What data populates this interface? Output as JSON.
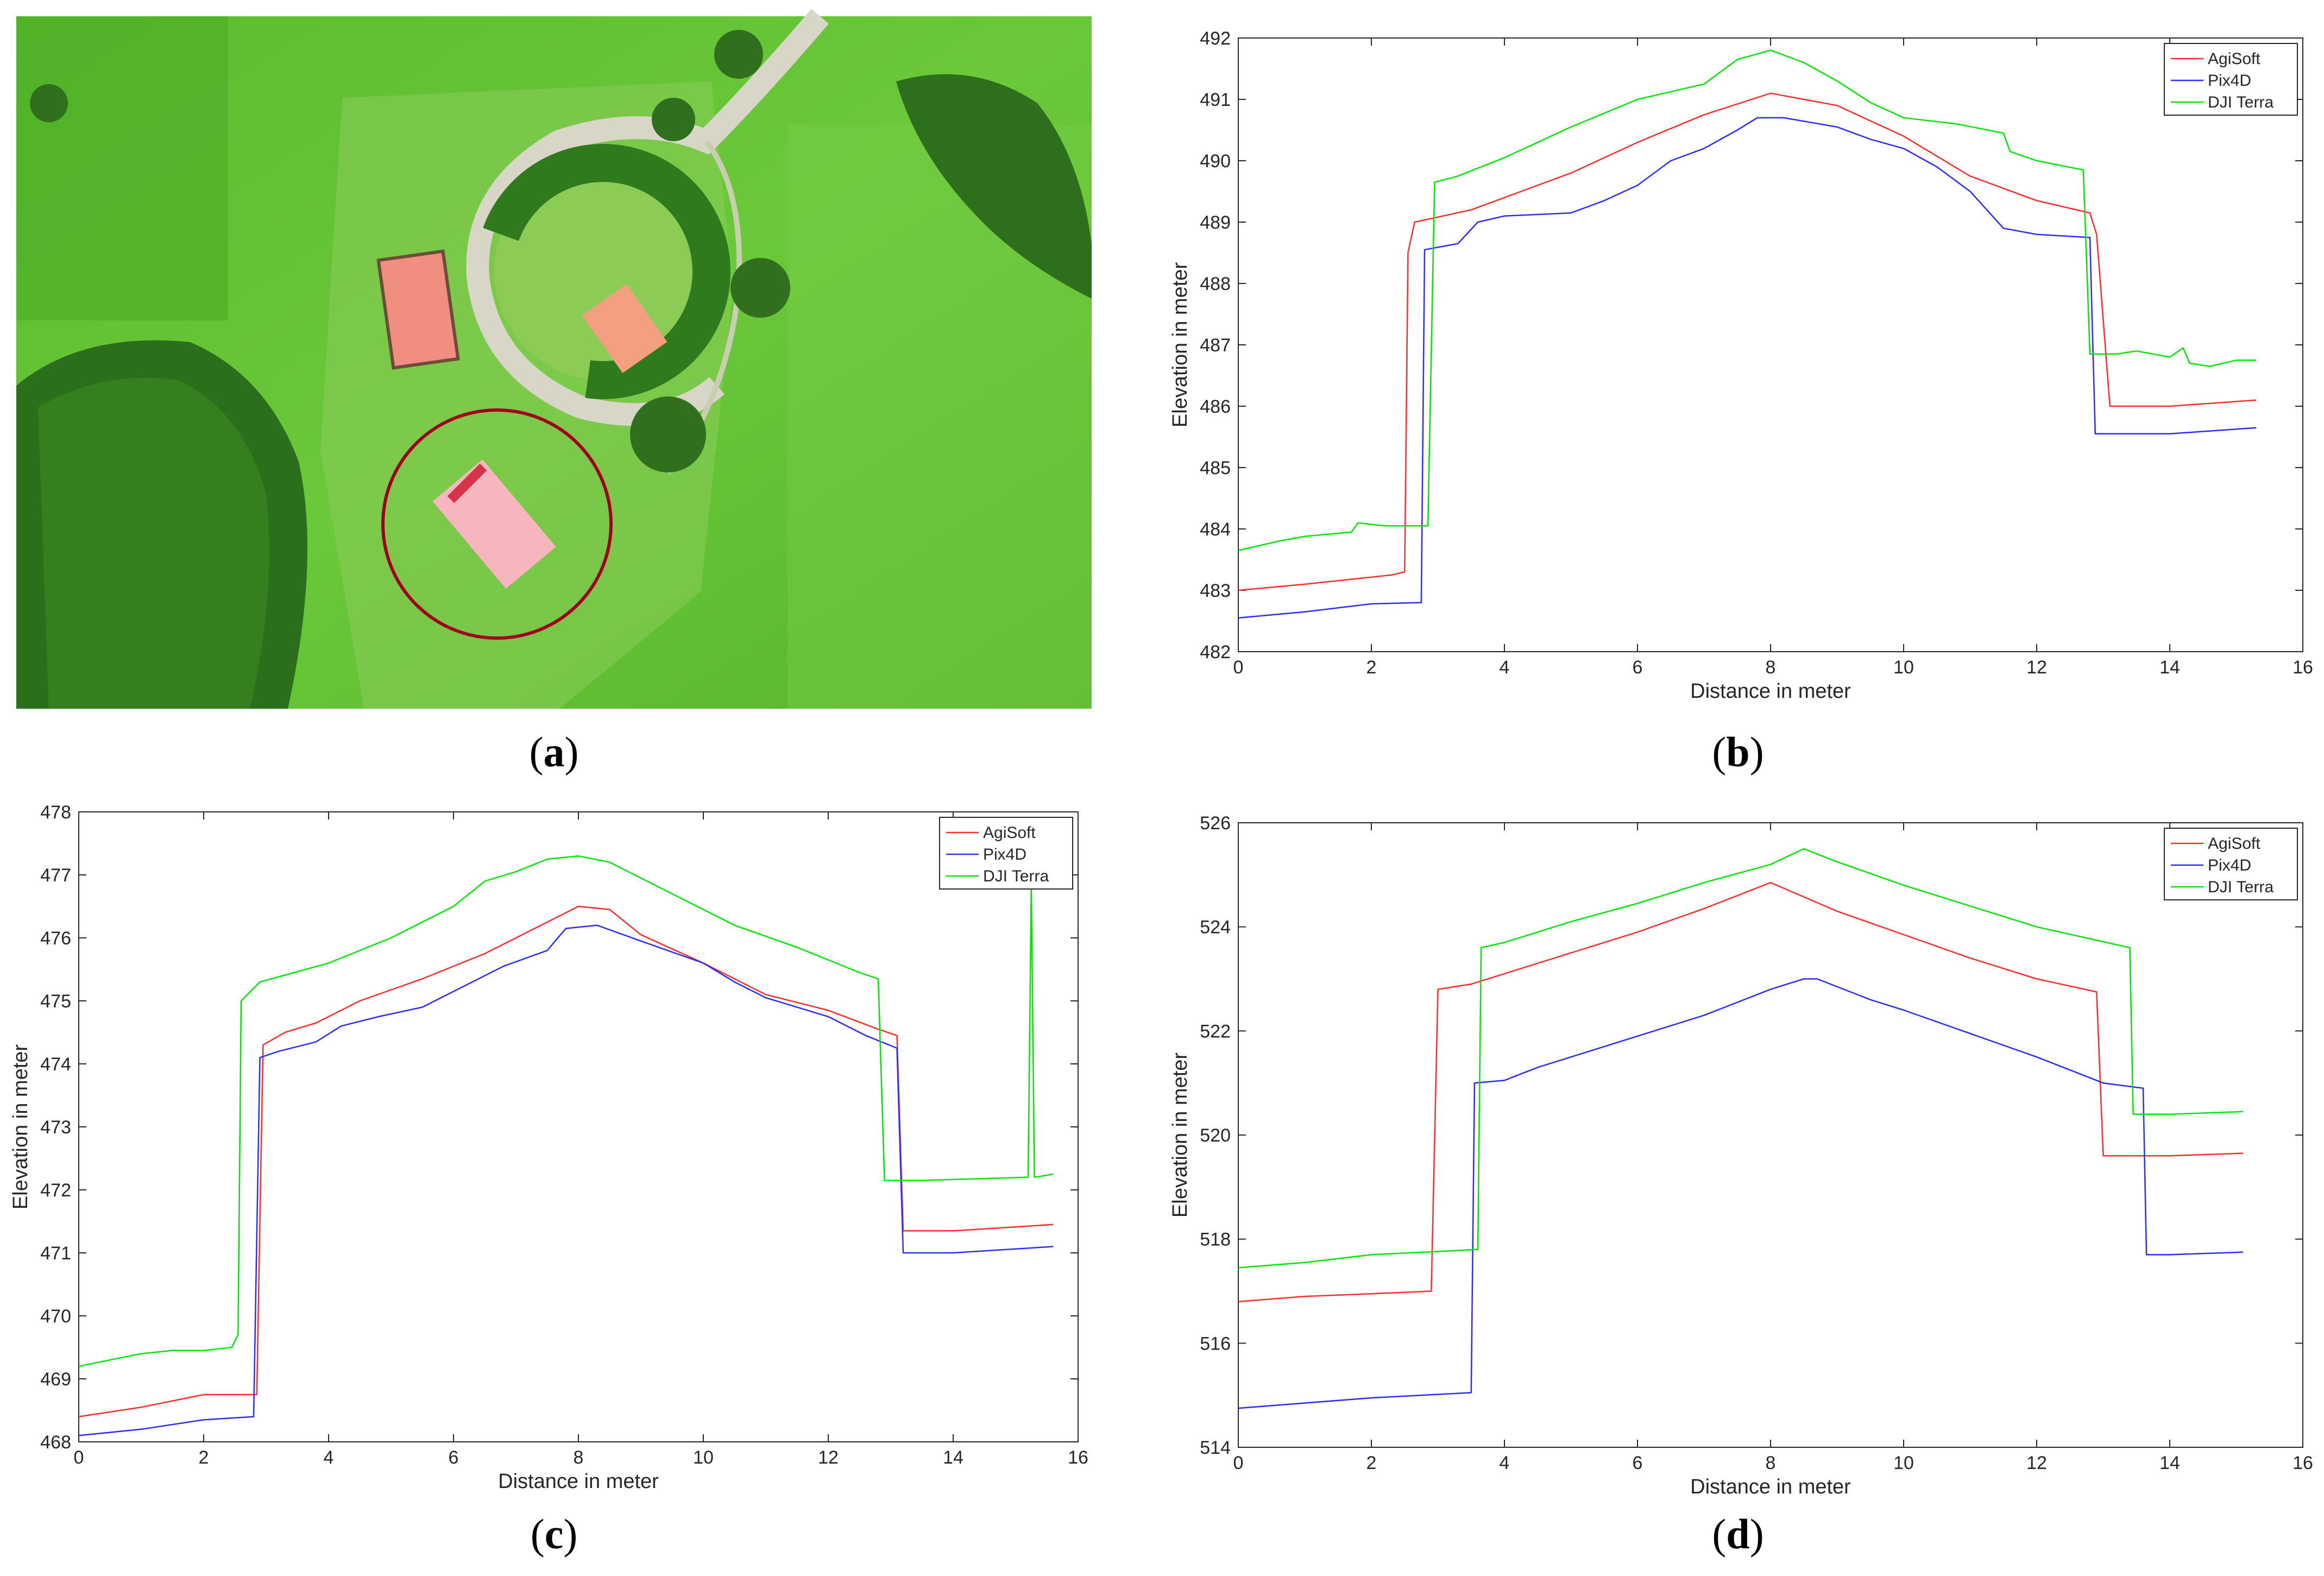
{
  "captions": {
    "a": "a",
    "b": "b",
    "c": "c",
    "d": "d"
  },
  "colors": {
    "agisoft": "#ff2a2a",
    "pix4d": "#2a2aff",
    "djiterra": "#00e600"
  },
  "chart_data": [
    {
      "id": "b",
      "type": "line",
      "title": "",
      "xlabel": "Distance in meter",
      "ylabel": "Elevation in meter",
      "xlim": [
        0,
        16
      ],
      "ylim": [
        482,
        492
      ],
      "xticks": [
        0,
        2,
        4,
        6,
        8,
        10,
        12,
        14,
        16
      ],
      "yticks": [
        482,
        483,
        484,
        485,
        486,
        487,
        488,
        489,
        490,
        491,
        492
      ],
      "legend_position": "top-right",
      "series": [
        {
          "name": "AgiSoft",
          "color": "#ff2a2a",
          "points": [
            [
              0,
              483.0
            ],
            [
              1,
              483.1
            ],
            [
              2.3,
              483.25
            ],
            [
              2.5,
              483.3
            ],
            [
              2.55,
              488.5
            ],
            [
              2.65,
              489.0
            ],
            [
              3.5,
              489.2
            ],
            [
              4,
              489.4
            ],
            [
              5,
              489.8
            ],
            [
              6,
              490.3
            ],
            [
              7,
              490.75
            ],
            [
              8,
              491.1
            ],
            [
              9,
              490.9
            ],
            [
              10,
              490.4
            ],
            [
              11,
              489.75
            ],
            [
              12,
              489.35
            ],
            [
              12.8,
              489.15
            ],
            [
              12.9,
              488.8
            ],
            [
              13.1,
              486.0
            ],
            [
              14,
              486.0
            ],
            [
              15.3,
              486.1
            ]
          ]
        },
        {
          "name": "Pix4D",
          "color": "#2a2aff",
          "points": [
            [
              0,
              482.55
            ],
            [
              1,
              482.65
            ],
            [
              2,
              482.78
            ],
            [
              2.75,
              482.8
            ],
            [
              2.8,
              488.55
            ],
            [
              3.3,
              488.65
            ],
            [
              3.6,
              489.0
            ],
            [
              4,
              489.1
            ],
            [
              5,
              489.15
            ],
            [
              5.5,
              489.35
            ],
            [
              6,
              489.6
            ],
            [
              6.5,
              490.0
            ],
            [
              7,
              490.2
            ],
            [
              7.5,
              490.5
            ],
            [
              7.8,
              490.7
            ],
            [
              8.2,
              490.7
            ],
            [
              9,
              490.55
            ],
            [
              9.5,
              490.35
            ],
            [
              10,
              490.2
            ],
            [
              10.5,
              489.9
            ],
            [
              11,
              489.5
            ],
            [
              11.5,
              488.9
            ],
            [
              12,
              488.8
            ],
            [
              12.8,
              488.75
            ],
            [
              12.88,
              485.55
            ],
            [
              14,
              485.55
            ],
            [
              15.3,
              485.65
            ]
          ]
        },
        {
          "name": "DJI Terra",
          "color": "#00e600",
          "points": [
            [
              0,
              483.65
            ],
            [
              0.6,
              483.8
            ],
            [
              1,
              483.88
            ],
            [
              1.7,
              483.95
            ],
            [
              1.8,
              484.1
            ],
            [
              2.2,
              484.05
            ],
            [
              2.85,
              484.05
            ],
            [
              2.95,
              489.65
            ],
            [
              3.3,
              489.75
            ],
            [
              4,
              490.05
            ],
            [
              5,
              490.55
            ],
            [
              6,
              491.0
            ],
            [
              7,
              491.25
            ],
            [
              7.5,
              491.65
            ],
            [
              8,
              491.8
            ],
            [
              8.5,
              491.6
            ],
            [
              9,
              491.3
            ],
            [
              9.5,
              490.95
            ],
            [
              10,
              490.7
            ],
            [
              10.8,
              490.6
            ],
            [
              11.5,
              490.45
            ],
            [
              11.6,
              490.15
            ],
            [
              12,
              490.0
            ],
            [
              12.7,
              489.85
            ],
            [
              12.8,
              486.85
            ],
            [
              13.2,
              486.85
            ],
            [
              13.5,
              486.9
            ],
            [
              14,
              486.8
            ],
            [
              14.2,
              486.95
            ],
            [
              14.3,
              486.7
            ],
            [
              14.6,
              486.65
            ],
            [
              15,
              486.75
            ],
            [
              15.3,
              486.75
            ]
          ]
        }
      ]
    },
    {
      "id": "c",
      "type": "line",
      "title": "",
      "xlabel": "Distance in meter",
      "ylabel": "Elevation in meter",
      "xlim": [
        0,
        16
      ],
      "ylim": [
        468,
        478
      ],
      "xticks": [
        0,
        2,
        4,
        6,
        8,
        10,
        12,
        14,
        16
      ],
      "yticks": [
        468,
        469,
        470,
        471,
        472,
        473,
        474,
        475,
        476,
        477,
        478
      ],
      "legend_position": "top-right",
      "series": [
        {
          "name": "AgiSoft",
          "color": "#ff2a2a",
          "points": [
            [
              0,
              468.4
            ],
            [
              1,
              468.55
            ],
            [
              2,
              468.75
            ],
            [
              2.85,
              468.75
            ],
            [
              2.95,
              474.3
            ],
            [
              3.3,
              474.5
            ],
            [
              3.8,
              474.65
            ],
            [
              4.5,
              475.0
            ],
            [
              5.5,
              475.35
            ],
            [
              6.5,
              475.75
            ],
            [
              7.5,
              476.25
            ],
            [
              8,
              476.5
            ],
            [
              8.5,
              476.45
            ],
            [
              9,
              476.05
            ],
            [
              10,
              475.6
            ],
            [
              11,
              475.1
            ],
            [
              12,
              474.85
            ],
            [
              12.8,
              474.55
            ],
            [
              13.1,
              474.45
            ],
            [
              13.2,
              471.35
            ],
            [
              14,
              471.35
            ],
            [
              15.6,
              471.45
            ]
          ]
        },
        {
          "name": "Pix4D",
          "color": "#2a2aff",
          "points": [
            [
              0,
              468.1
            ],
            [
              1,
              468.2
            ],
            [
              2,
              468.35
            ],
            [
              2.8,
              468.4
            ],
            [
              2.9,
              474.1
            ],
            [
              3.2,
              474.2
            ],
            [
              3.8,
              474.35
            ],
            [
              4.2,
              474.6
            ],
            [
              4.8,
              474.75
            ],
            [
              5.5,
              474.9
            ],
            [
              6,
              475.15
            ],
            [
              6.8,
              475.55
            ],
            [
              7.5,
              475.8
            ],
            [
              7.8,
              476.15
            ],
            [
              8.3,
              476.2
            ],
            [
              9,
              475.95
            ],
            [
              10,
              475.6
            ],
            [
              10.5,
              475.3
            ],
            [
              11,
              475.05
            ],
            [
              12,
              474.75
            ],
            [
              12.6,
              474.45
            ],
            [
              13.1,
              474.25
            ],
            [
              13.2,
              471.0
            ],
            [
              14,
              471.0
            ],
            [
              15.6,
              471.1
            ]
          ]
        },
        {
          "name": "DJI Terra",
          "color": "#00e600",
          "points": [
            [
              0,
              469.2
            ],
            [
              0.5,
              469.3
            ],
            [
              1,
              469.4
            ],
            [
              1.5,
              469.45
            ],
            [
              2,
              469.45
            ],
            [
              2.45,
              469.5
            ],
            [
              2.55,
              469.7
            ],
            [
              2.6,
              475.0
            ],
            [
              2.9,
              475.3
            ],
            [
              4,
              475.6
            ],
            [
              5,
              476.0
            ],
            [
              6,
              476.5
            ],
            [
              6.5,
              476.9
            ],
            [
              7,
              477.05
            ],
            [
              7.5,
              477.25
            ],
            [
              8,
              477.3
            ],
            [
              8.5,
              477.2
            ],
            [
              9.5,
              476.7
            ],
            [
              10.5,
              476.2
            ],
            [
              11.5,
              475.85
            ],
            [
              12.5,
              475.45
            ],
            [
              12.8,
              475.35
            ],
            [
              12.9,
              472.15
            ],
            [
              13.5,
              472.15
            ],
            [
              15.2,
              472.2
            ],
            [
              15.25,
              476.85
            ],
            [
              15.3,
              472.2
            ],
            [
              15.6,
              472.25
            ]
          ]
        }
      ]
    },
    {
      "id": "d",
      "type": "line",
      "title": "",
      "xlabel": "Distance in meter",
      "ylabel": "Elevation in meter",
      "xlim": [
        0,
        16
      ],
      "ylim": [
        514,
        526
      ],
      "xticks": [
        0,
        2,
        4,
        6,
        8,
        10,
        12,
        14,
        16
      ],
      "yticks": [
        514,
        516,
        518,
        520,
        522,
        524,
        526
      ],
      "legend_position": "top-right",
      "series": [
        {
          "name": "AgiSoft",
          "color": "#ff2a2a",
          "points": [
            [
              0,
              516.8
            ],
            [
              1,
              516.9
            ],
            [
              2,
              516.95
            ],
            [
              2.9,
              517.0
            ],
            [
              3.0,
              522.8
            ],
            [
              3.5,
              522.9
            ],
            [
              4,
              523.1
            ],
            [
              5,
              523.5
            ],
            [
              6,
              523.9
            ],
            [
              7,
              524.35
            ],
            [
              8,
              524.85
            ],
            [
              9,
              524.3
            ],
            [
              10,
              523.85
            ],
            [
              11,
              523.4
            ],
            [
              12,
              523.0
            ],
            [
              12.9,
              522.75
            ],
            [
              13.0,
              519.6
            ],
            [
              14,
              519.6
            ],
            [
              15.1,
              519.65
            ]
          ]
        },
        {
          "name": "Pix4D",
          "color": "#2a2aff",
          "points": [
            [
              0,
              514.75
            ],
            [
              1,
              514.85
            ],
            [
              2,
              514.95
            ],
            [
              3.5,
              515.05
            ],
            [
              3.55,
              521.0
            ],
            [
              4,
              521.05
            ],
            [
              4.5,
              521.3
            ],
            [
              5,
              521.5
            ],
            [
              6,
              521.9
            ],
            [
              7,
              522.3
            ],
            [
              8,
              522.8
            ],
            [
              8.5,
              523.0
            ],
            [
              8.7,
              523.0
            ],
            [
              9.5,
              522.6
            ],
            [
              10,
              522.4
            ],
            [
              11,
              521.95
            ],
            [
              12,
              521.5
            ],
            [
              13,
              521.0
            ],
            [
              13.6,
              520.9
            ],
            [
              13.65,
              517.7
            ],
            [
              14,
              517.7
            ],
            [
              15.1,
              517.75
            ]
          ]
        },
        {
          "name": "DJI Terra",
          "color": "#00e600",
          "points": [
            [
              0,
              517.45
            ],
            [
              1,
              517.55
            ],
            [
              2,
              517.7
            ],
            [
              3.6,
              517.8
            ],
            [
              3.65,
              523.6
            ],
            [
              4,
              523.7
            ],
            [
              5,
              524.1
            ],
            [
              6,
              524.45
            ],
            [
              7,
              524.85
            ],
            [
              8,
              525.2
            ],
            [
              8.5,
              525.5
            ],
            [
              9,
              525.25
            ],
            [
              10,
              524.8
            ],
            [
              11,
              524.4
            ],
            [
              12,
              524.0
            ],
            [
              13.4,
              523.6
            ],
            [
              13.45,
              520.4
            ],
            [
              14,
              520.4
            ],
            [
              15.1,
              520.45
            ]
          ]
        }
      ]
    }
  ]
}
